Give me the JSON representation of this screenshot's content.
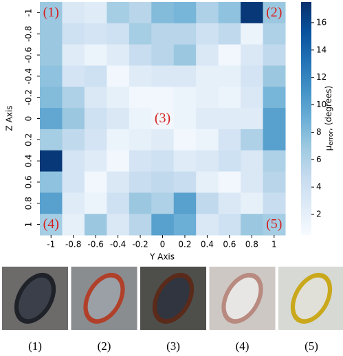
{
  "chart_data": {
    "type": "heatmap",
    "x_label": "Y Axis",
    "y_label": "Z Axis",
    "x": [
      -1,
      -0.8,
      -0.6,
      -0.4,
      -0.2,
      0,
      0.2,
      0.4,
      0.6,
      0.8,
      1
    ],
    "y": [
      -1,
      -0.8,
      -0.6,
      -0.4,
      -0.2,
      0,
      0.2,
      0.4,
      0.6,
      0.8,
      1
    ],
    "z": [
      [
        7,
        3,
        2.5,
        6.5,
        5.5,
        8,
        8.5,
        6,
        7.5,
        17,
        7
      ],
      [
        7,
        4,
        3.5,
        4,
        6.5,
        5.5,
        5.5,
        4,
        5,
        1.5,
        6
      ],
      [
        7,
        2.5,
        1.5,
        2.5,
        4.5,
        5.5,
        7,
        3,
        1,
        3,
        5
      ],
      [
        7.5,
        3.5,
        4,
        1,
        2.5,
        3,
        3,
        2,
        2,
        3.5,
        7
      ],
      [
        8,
        6,
        3,
        2,
        1,
        1,
        1.5,
        2,
        1.5,
        3,
        8.5
      ],
      [
        9.5,
        7,
        4,
        3,
        1.5,
        1,
        1.5,
        2.5,
        2.5,
        2.5,
        10
      ],
      [
        6.5,
        5,
        3.5,
        1.5,
        2,
        2.5,
        1,
        1.5,
        3.5,
        6,
        10
      ],
      [
        17,
        3.5,
        2.5,
        1,
        3.5,
        4,
        2.5,
        3,
        4,
        3,
        6
      ],
      [
        7.5,
        3.5,
        1,
        3,
        4.5,
        5,
        4.5,
        2,
        1,
        3,
        5.5
      ],
      [
        10,
        2.5,
        1.5,
        4,
        7,
        6,
        10,
        5,
        3,
        2,
        4.5
      ],
      [
        6.5,
        2,
        7,
        3,
        5.5,
        10,
        9,
        3,
        4,
        7,
        6.5
      ]
    ],
    "colormap": [
      "#f7fbff",
      "#deebf7",
      "#c6dbef",
      "#9ecae1",
      "#6baed6",
      "#4292c6",
      "#2171b5",
      "#08519c",
      "#08306b"
    ],
    "clim": [
      0.5,
      17.5
    ],
    "cticks": [
      2,
      4,
      6,
      8,
      10,
      12,
      14,
      16
    ],
    "colorbar_label": {
      "symbol": "μ",
      "subscript": "error",
      "rest": ", (degrees)"
    },
    "annotations": [
      {
        "text": "(1)",
        "x": -1,
        "y": -1
      },
      {
        "text": "(2)",
        "x": 1,
        "y": -1
      },
      {
        "text": "(3)",
        "x": 0,
        "y": 0
      },
      {
        "text": "(4)",
        "x": -1,
        "y": 1
      },
      {
        "text": "(5)",
        "x": 1,
        "y": 1
      }
    ]
  },
  "panels": [
    {
      "caption": "(1)"
    },
    {
      "caption": "(2)"
    },
    {
      "caption": "(3)"
    },
    {
      "caption": "(4)"
    },
    {
      "caption": "(5)"
    }
  ]
}
